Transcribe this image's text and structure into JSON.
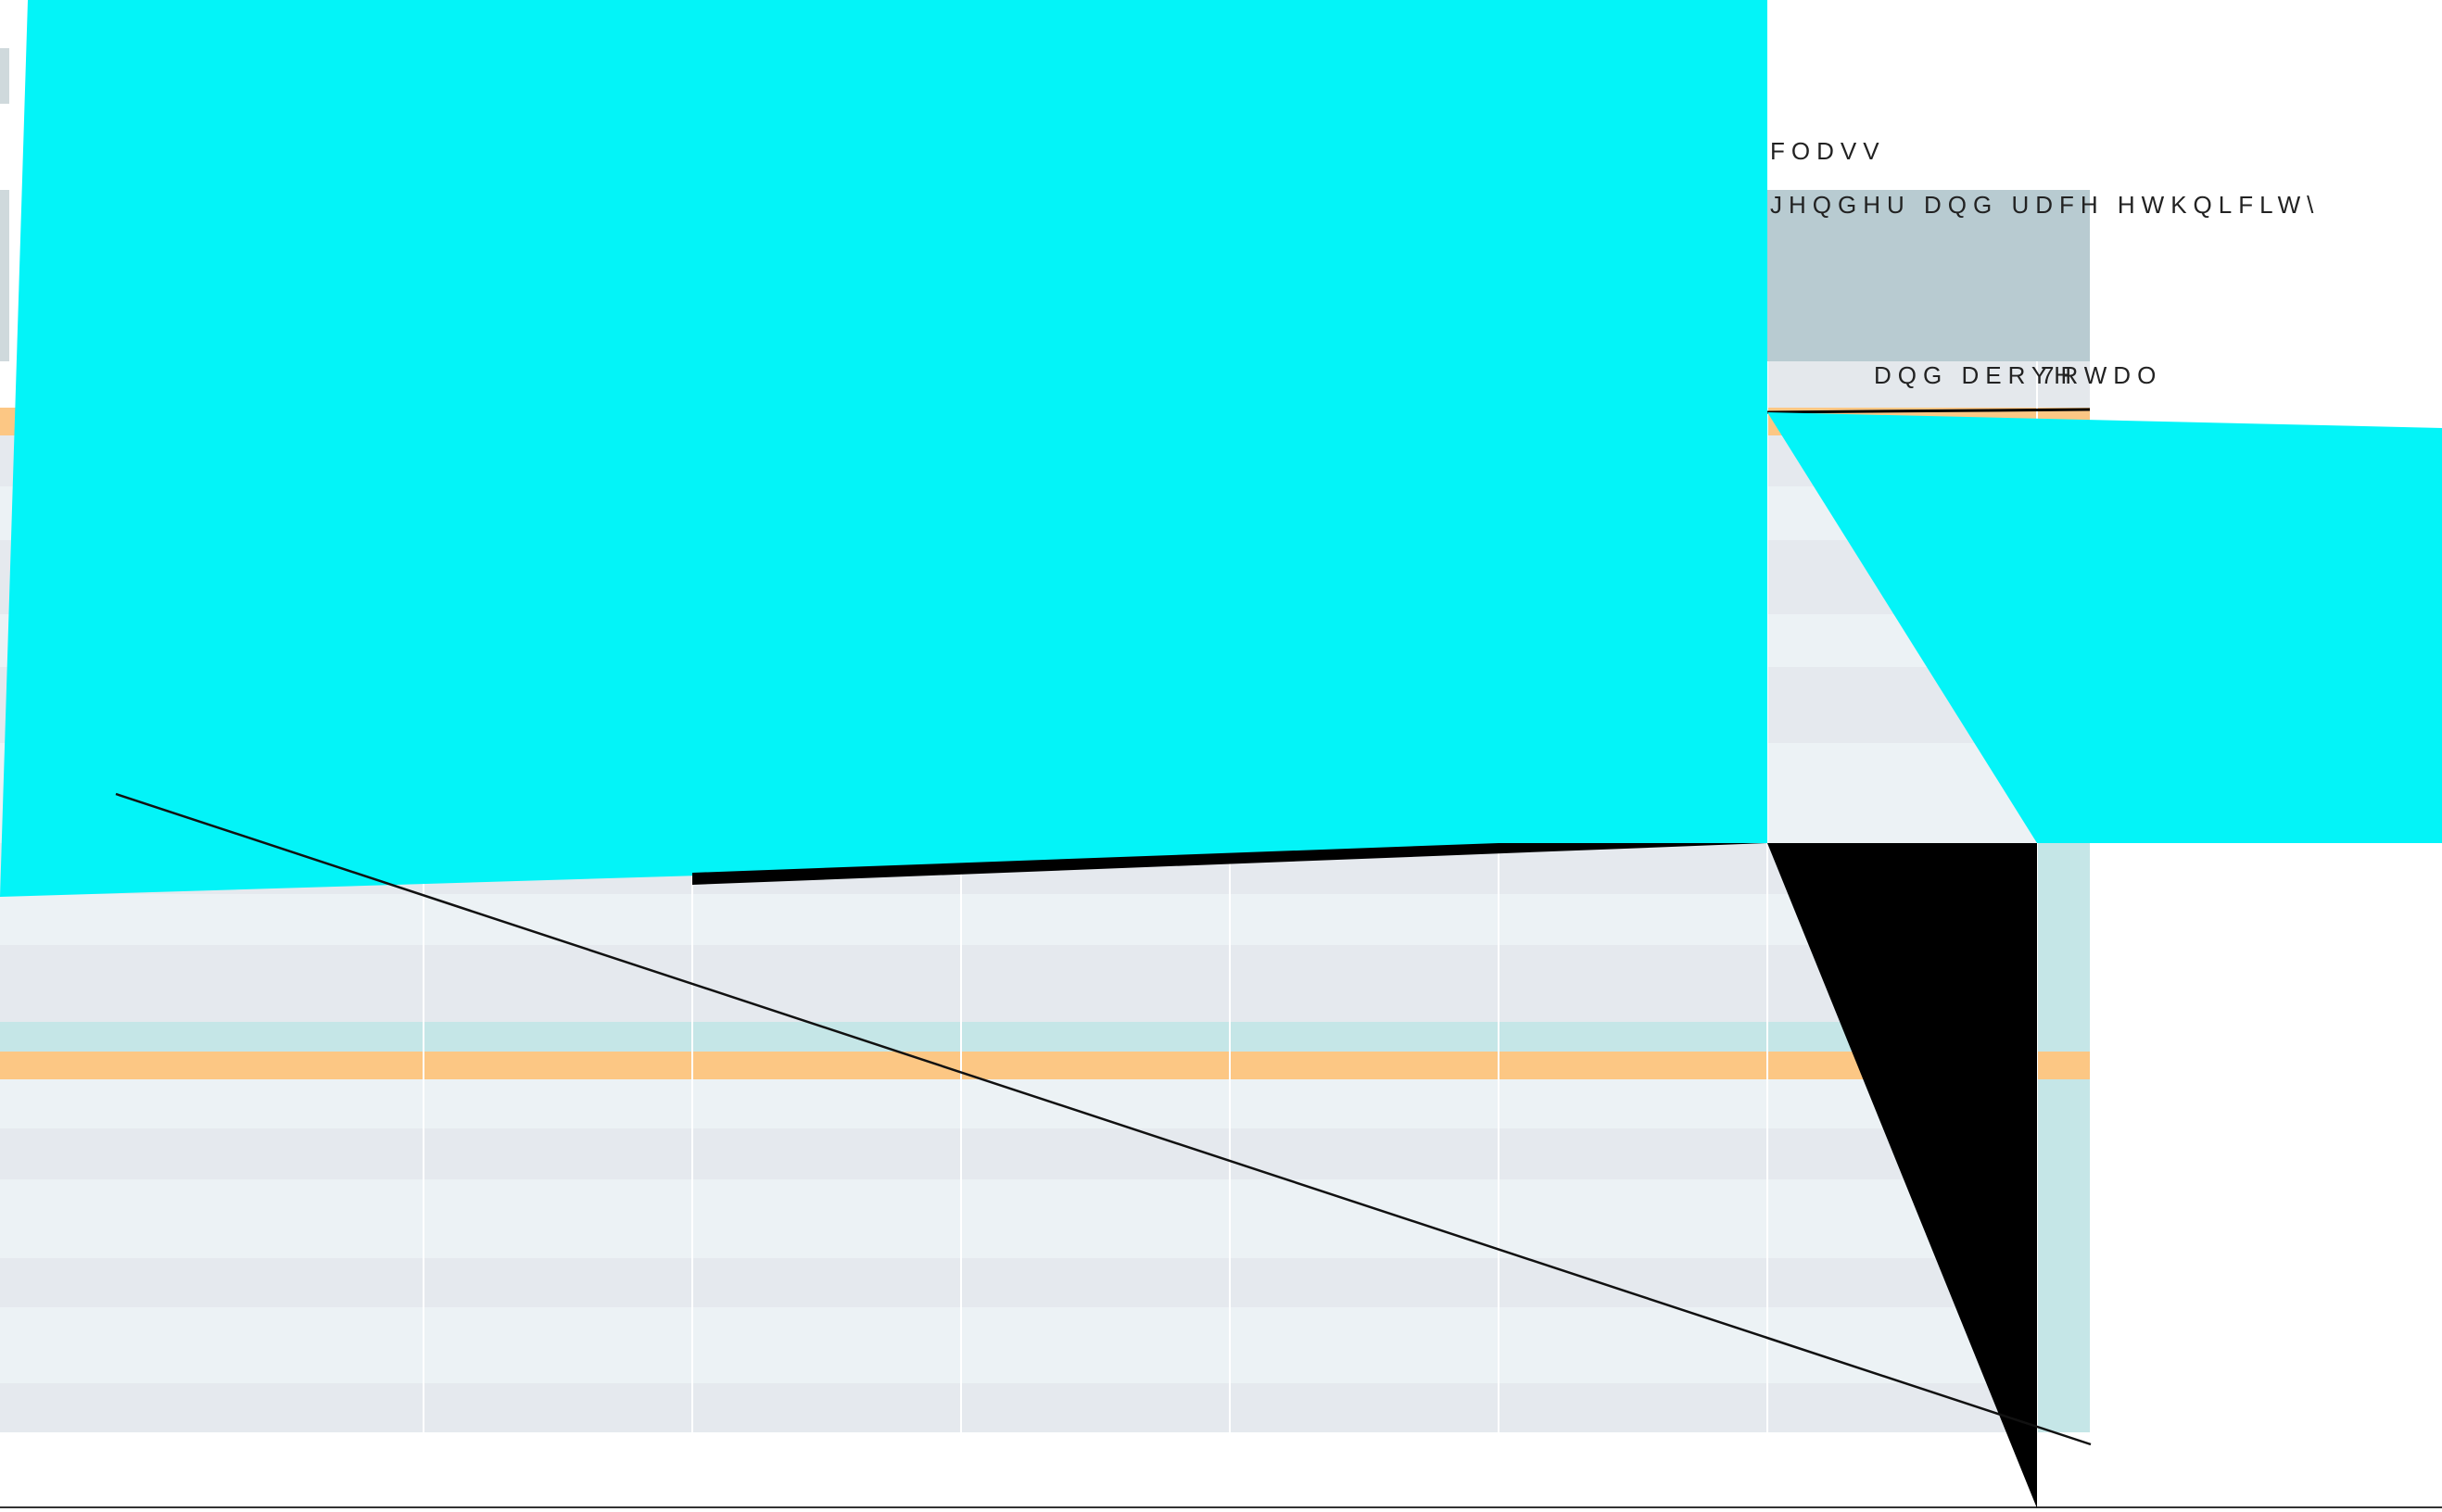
{
  "labels": {
    "class_heading": "FODVV",
    "gender_race_ethnicity": "JHQGHU   DQG UDFH  HWKQLFLW\\",
    "and_above": "DQG DERYH",
    "total": "7RWDO"
  },
  "colors": {
    "background": "#ffffff",
    "cyan_overlay": "#03f4f8",
    "header_band": "#b8cbd1",
    "subheader_band": "#e4e8ec",
    "row_light": "#ecf2f5",
    "row_dark": "#e5e9ee",
    "row_teal": "#c5e6e7",
    "highlight_orange": "#fcc784",
    "total_column": "#c5e6e7",
    "lines": "#000000"
  }
}
